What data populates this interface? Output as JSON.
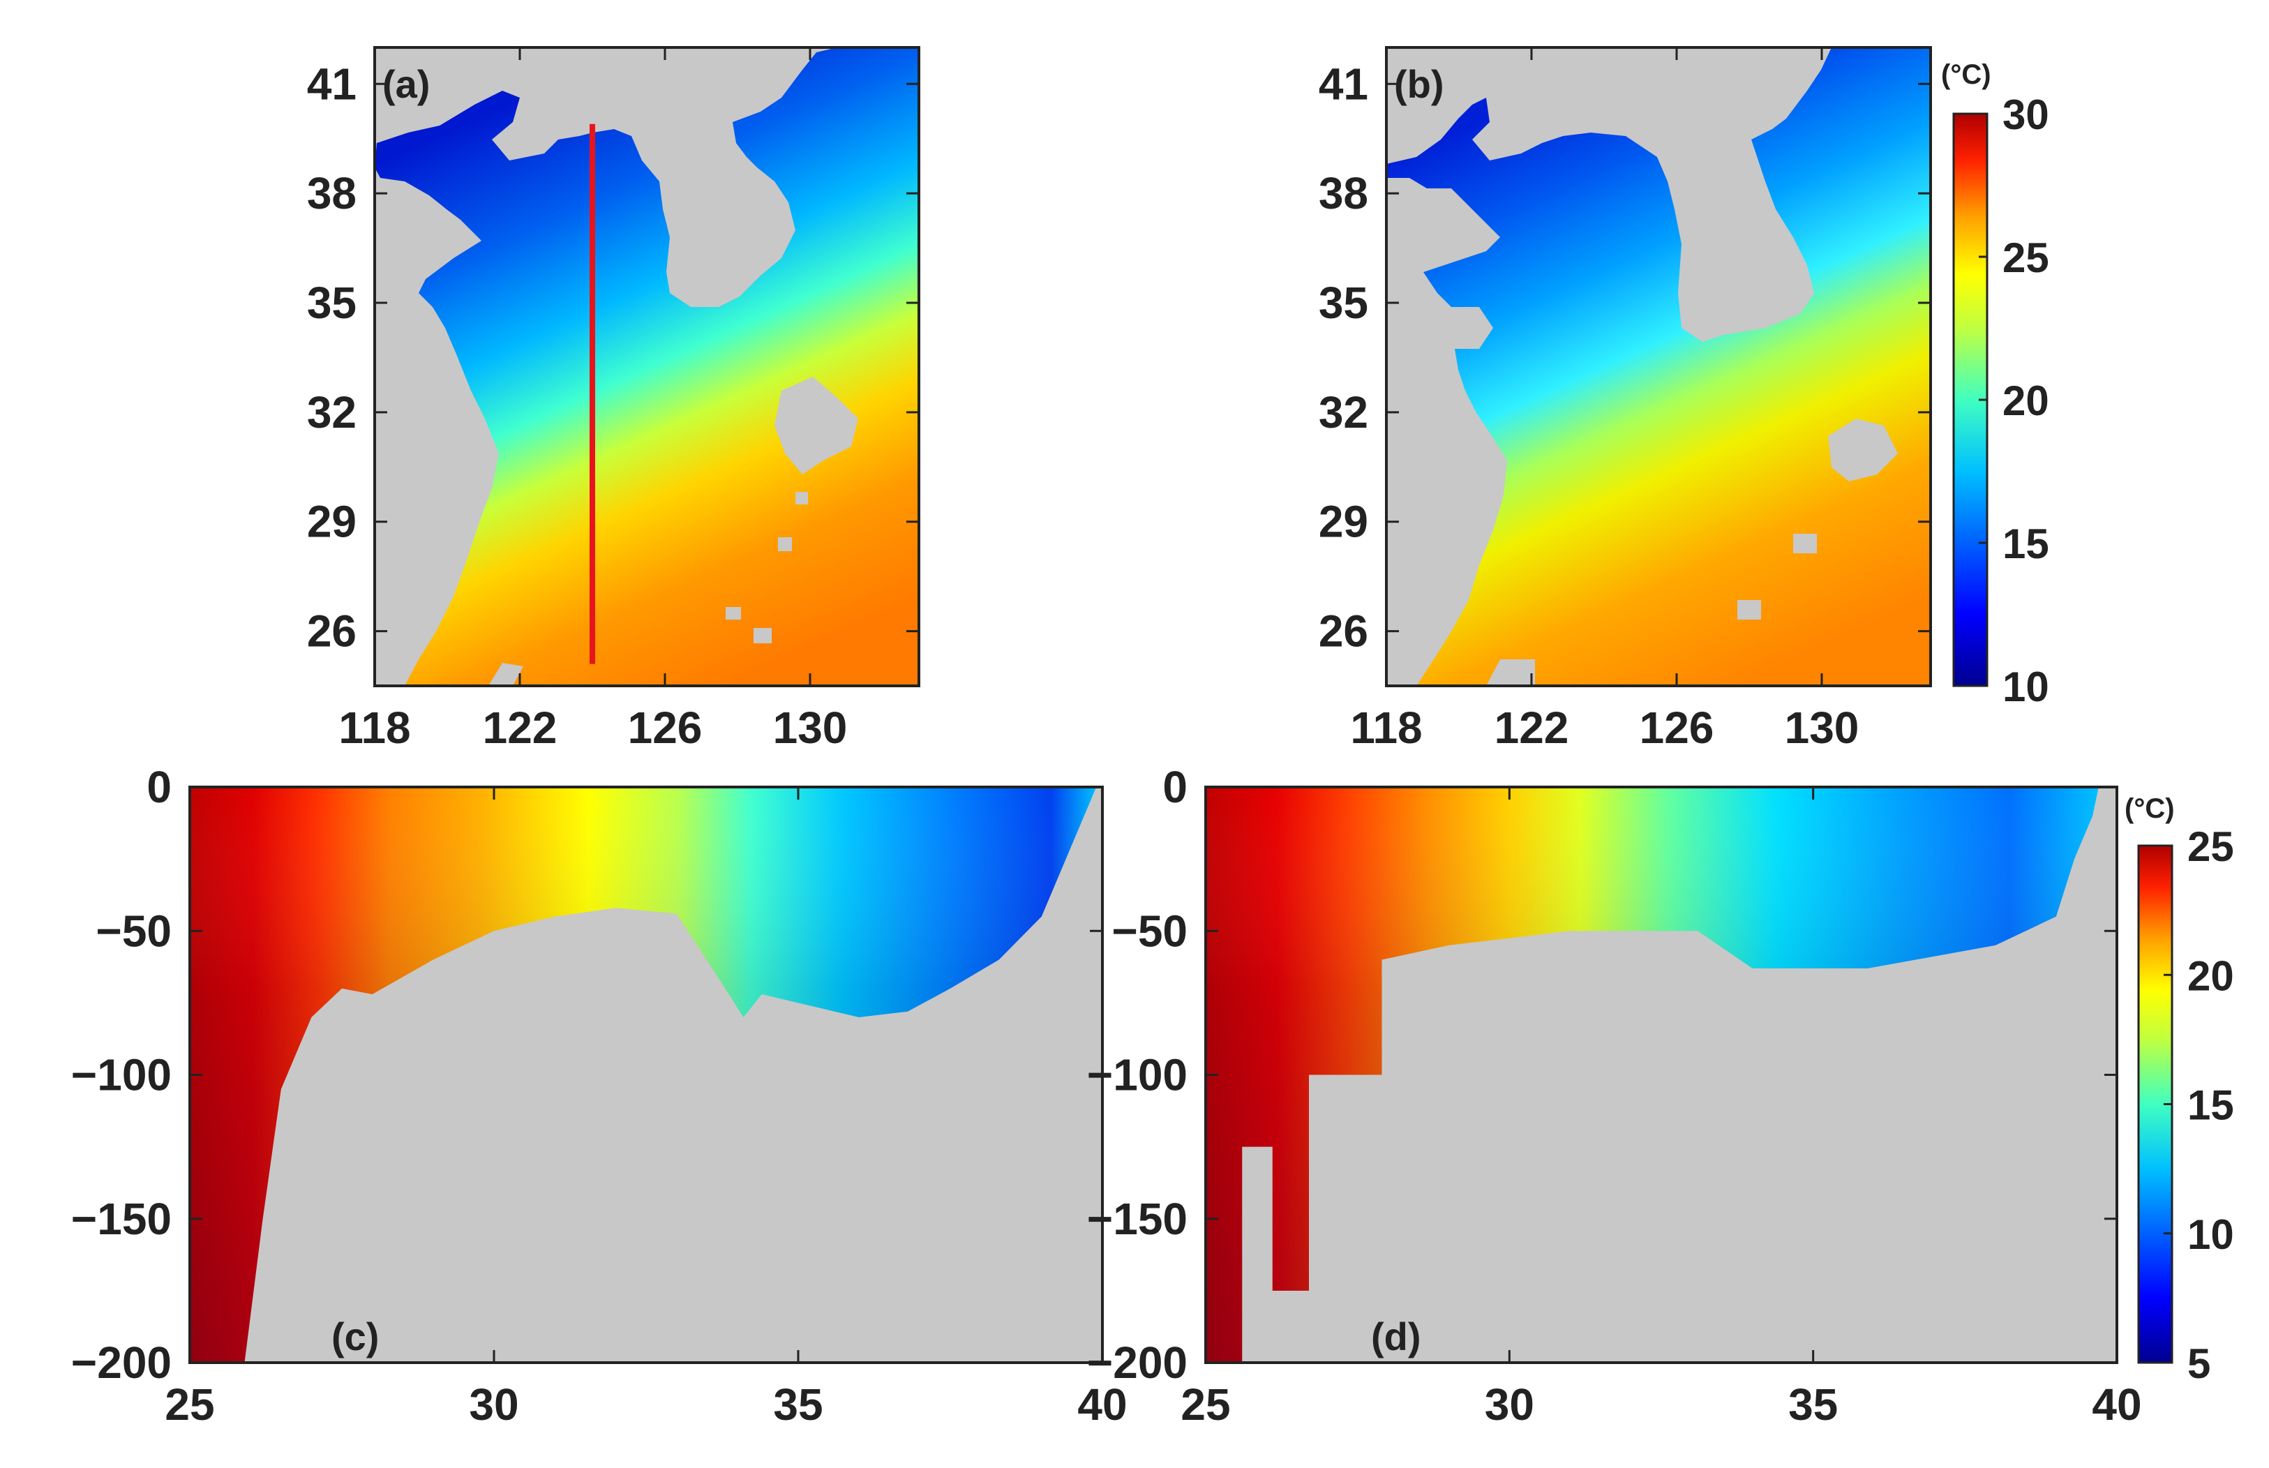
{
  "figure": {
    "panels": [
      "(a)",
      "(b)",
      "(c)",
      "(d)"
    ],
    "unit": "(°C)"
  },
  "colors": {
    "land": "#c8c8c8",
    "frame": "#222222",
    "section_line": "#e8141c",
    "colormap": [
      "#00008f",
      "#0000ff",
      "#0080ff",
      "#00ffff",
      "#80ff80",
      "#ffff00",
      "#ff8000",
      "#ff0000",
      "#800000"
    ]
  },
  "chart_data": [
    {
      "type": "heatmap",
      "panel": "(a)",
      "variable": "surface temperature",
      "xlim": [
        118,
        133
      ],
      "ylim": [
        24.5,
        42
      ],
      "xticks": [
        118,
        122,
        126,
        130
      ],
      "yticks": [
        26,
        29,
        32,
        35,
        38,
        41
      ],
      "xtick_labels": [
        "118",
        "122",
        "126",
        "130"
      ],
      "ytick_labels": [
        "26",
        "29",
        "32",
        "35",
        "38",
        "41"
      ],
      "section_line": {
        "lon": 124,
        "lat": [
          25.1,
          39.9
        ]
      },
      "colorbar": "temperature",
      "grid": false
    },
    {
      "type": "heatmap",
      "panel": "(b)",
      "variable": "surface temperature",
      "xlim": [
        118,
        133
      ],
      "ylim": [
        24.5,
        42
      ],
      "xticks": [
        118,
        122,
        126,
        130
      ],
      "yticks": [
        26,
        29,
        32,
        35,
        38,
        41
      ],
      "xtick_labels": [
        "118",
        "122",
        "126",
        "130"
      ],
      "ytick_labels": [
        "26",
        "29",
        "32",
        "35",
        "38",
        "41"
      ],
      "colorbar": {
        "range": [
          10,
          30
        ],
        "ticks": [
          10,
          15,
          20,
          25,
          30
        ],
        "tick_labels": [
          "10",
          "15",
          "20",
          "25",
          "30"
        ],
        "unit": "(°C)"
      },
      "grid": false
    },
    {
      "type": "heatmap",
      "panel": "(c)",
      "variable": "temperature section",
      "xlim": [
        25,
        40
      ],
      "ylim": [
        -200,
        0
      ],
      "xticks": [
        25,
        30,
        35,
        40
      ],
      "yticks": [
        0,
        -50,
        -100,
        -150,
        -200
      ],
      "xtick_labels": [
        "25",
        "30",
        "35",
        "40"
      ],
      "ytick_labels": [
        "0",
        "−50",
        "−100",
        "−150",
        "−200"
      ],
      "bottom_depth": {
        "x": [
          25,
          25.9,
          26.2,
          26.5,
          27,
          27.5,
          28,
          28.5,
          29,
          30,
          31,
          32,
          33,
          33.8,
          34.1,
          34.4,
          35,
          36,
          36.8,
          37.5,
          38.3,
          39,
          39.5,
          39.9
        ],
        "y": [
          -200,
          -200,
          -150,
          -105,
          -80,
          -70,
          -72,
          -66,
          -60,
          -50,
          -45,
          -42,
          -44,
          -70,
          -80,
          -72,
          -75,
          -80,
          -78,
          -70,
          -60,
          -45,
          -20,
          0
        ]
      },
      "colorbar": "temperature",
      "grid": false
    },
    {
      "type": "heatmap",
      "panel": "(d)",
      "variable": "temperature section",
      "xlim": [
        25,
        40
      ],
      "ylim": [
        -200,
        0
      ],
      "xticks": [
        25,
        30,
        35,
        40
      ],
      "yticks": [
        0,
        -50,
        -100,
        -150,
        -200
      ],
      "xtick_labels": [
        "25",
        "30",
        "35",
        "40"
      ],
      "ytick_labels": [
        "0",
        "−50",
        "−100",
        "−150",
        "−200"
      ],
      "bottom_depth": {
        "x": [
          25,
          25.6,
          25.6,
          26.1,
          26.1,
          26.7,
          26.7,
          27.3,
          27.3,
          27.9,
          27.9,
          29,
          31,
          33.1,
          34,
          35.9,
          38,
          39,
          39.3,
          39.6,
          39.7
        ],
        "y": [
          -200,
          -200,
          -125,
          -125,
          -175,
          -175,
          -100,
          -100,
          -100,
          -100,
          -60,
          -55,
          -50,
          -50,
          -63,
          -63,
          -55,
          -45,
          -25,
          -10,
          0
        ]
      },
      "colorbar": {
        "range": [
          5,
          25
        ],
        "ticks": [
          5,
          10,
          15,
          20,
          25
        ],
        "tick_labels": [
          "5",
          "10",
          "15",
          "20",
          "25"
        ],
        "unit": "(°C)"
      },
      "grid": false
    }
  ]
}
